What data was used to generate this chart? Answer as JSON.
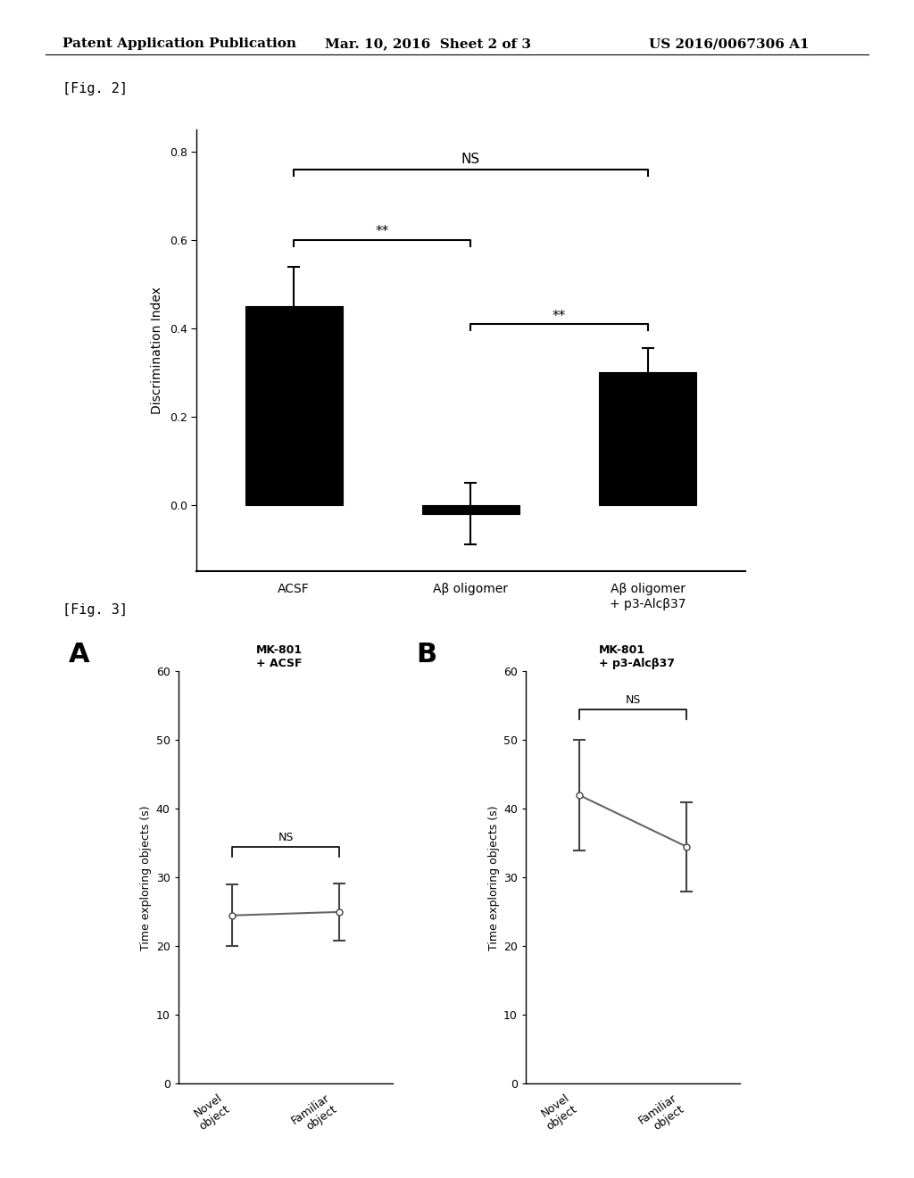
{
  "header_left": "Patent Application Publication",
  "header_mid": "Mar. 10, 2016  Sheet 2 of 3",
  "header_right": "US 2016/0067306 A1",
  "fig2_label": "[Fig. 2]",
  "fig3_label": "[Fig. 3]",
  "fig2_categories": [
    "ACSF",
    "Aβ oligomer",
    "Aβ oligomer\n+ p3-Alcβ37"
  ],
  "fig2_values": [
    0.45,
    -0.02,
    0.3
  ],
  "fig2_errors": [
    0.09,
    0.07,
    0.055
  ],
  "fig2_ylabel": "Discrimination Index",
  "fig2_ylim": [
    -0.15,
    0.85
  ],
  "fig2_yticks": [
    0.0,
    0.2,
    0.4,
    0.6,
    0.8
  ],
  "fig2_bar_color": "#000000",
  "figA_title_line1": "MK-801",
  "figA_title_line2": "+ ACSF",
  "figA_x_labels": [
    "Novel\nobject",
    "Familiar\nobject"
  ],
  "figA_values": [
    24.5,
    25.0
  ],
  "figA_errors": [
    4.5,
    4.2
  ],
  "figA_ylabel": "Time exploring objects (s)",
  "figA_ylim": [
    0,
    60
  ],
  "figA_yticks": [
    0,
    10,
    20,
    30,
    40,
    50,
    60
  ],
  "figB_title_line1": "MK-801",
  "figB_title_line2": "+ p3-Alcβ37",
  "figB_x_labels": [
    "Novel\nobject",
    "Familiar\nobject"
  ],
  "figB_values": [
    42.0,
    34.5
  ],
  "figB_errors": [
    8.0,
    6.5
  ],
  "figB_ylabel": "Time exploring objects (s)",
  "figB_ylim": [
    0,
    60
  ],
  "figB_yticks": [
    0,
    10,
    20,
    30,
    40,
    50,
    60
  ],
  "line_color": "#666666",
  "marker_color": "#ffffff",
  "marker_edge_color": "#444444",
  "bg_color": "#ffffff",
  "text_color": "#000000",
  "fontsize_header": 11,
  "fontsize_label": 10,
  "fontsize_tick": 9,
  "fontsize_panel_title": 9,
  "fontsize_fig_label": 11,
  "fontsize_section_label": 22,
  "fontsize_bracket_text": 11
}
